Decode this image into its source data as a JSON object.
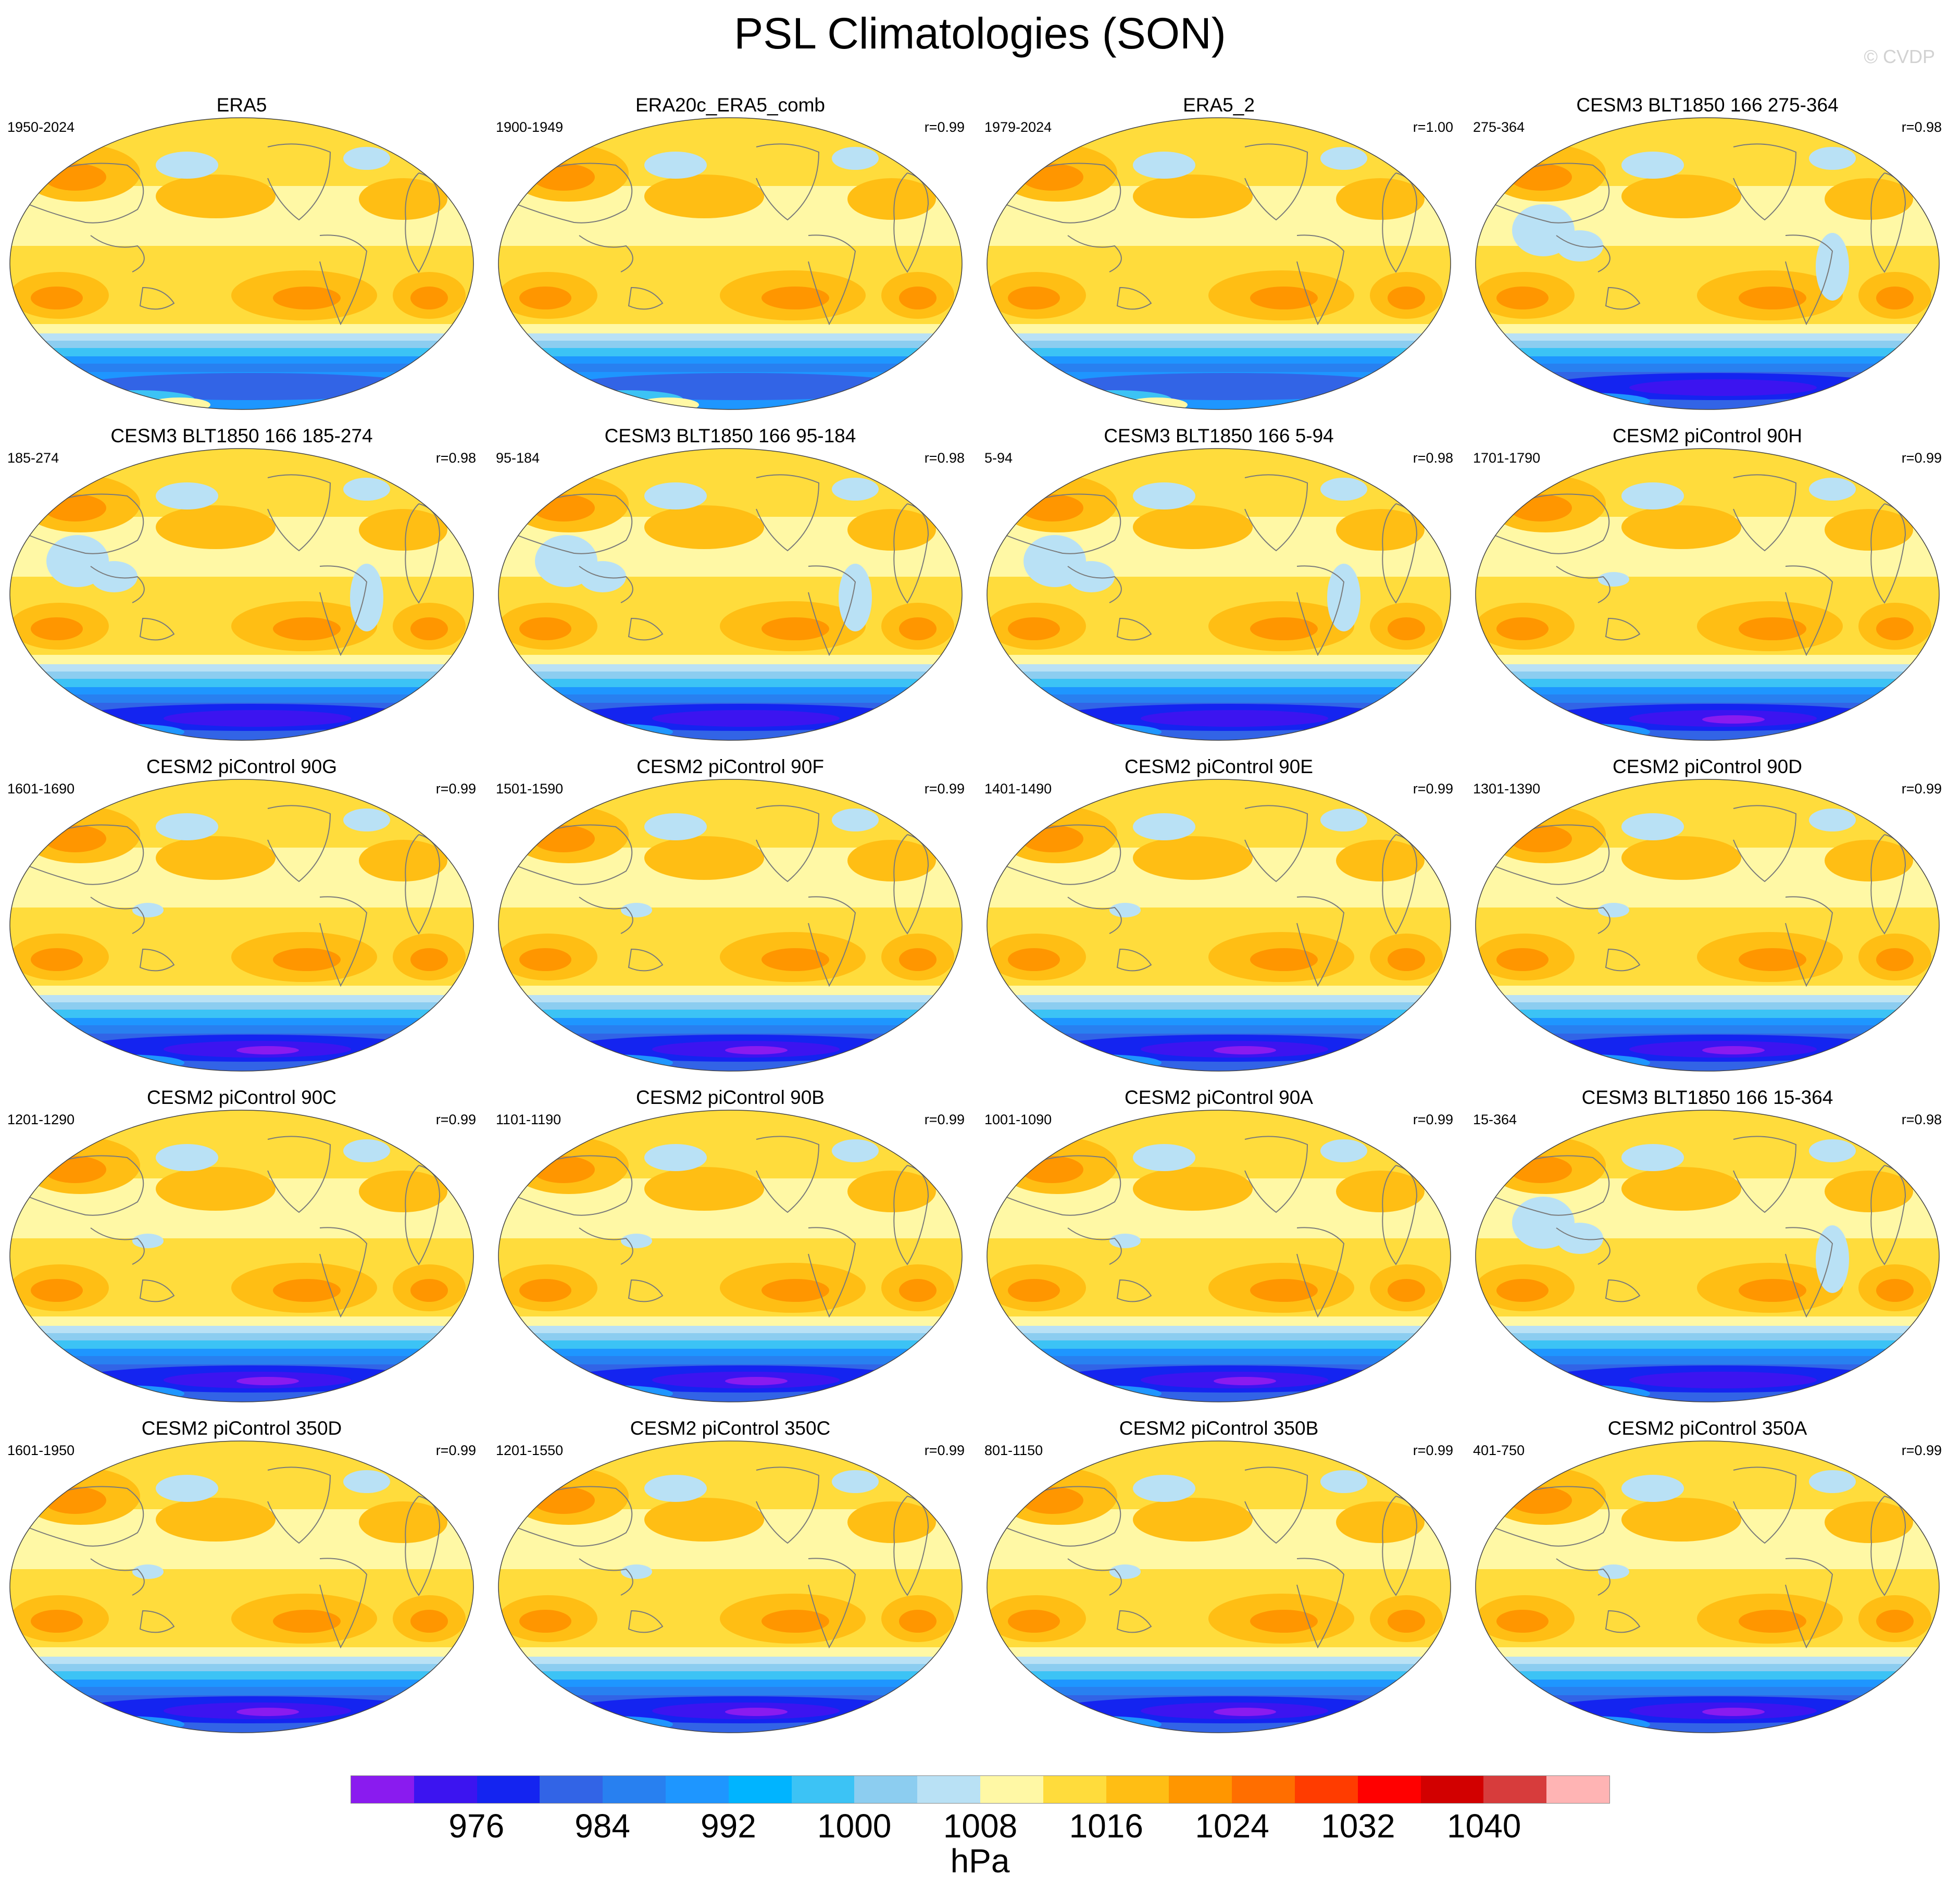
{
  "title": "PSL Climatologies (SON)",
  "watermark": "© CVDP",
  "panels": [
    {
      "title": "ERA5",
      "years": "1950-2024",
      "r": "",
      "variant": "obs"
    },
    {
      "title": "ERA20c_ERA5_comb",
      "years": "1900-1949",
      "r": "r=0.99",
      "variant": "obs"
    },
    {
      "title": "ERA5_2",
      "years": "1979-2024",
      "r": "r=1.00",
      "variant": "obs"
    },
    {
      "title": "CESM3 BLT1850 166 275-364",
      "years": "275-364",
      "r": "r=0.98",
      "variant": "cesm3"
    },
    {
      "title": "CESM3 BLT1850 166 185-274",
      "years": "185-274",
      "r": "r=0.98",
      "variant": "cesm3"
    },
    {
      "title": "CESM3 BLT1850 166 95-184",
      "years": "95-184",
      "r": "r=0.98",
      "variant": "cesm3"
    },
    {
      "title": "CESM3 BLT1850 166 5-94",
      "years": "5-94",
      "r": "r=0.98",
      "variant": "cesm3"
    },
    {
      "title": "CESM2 piControl 90H",
      "years": "1701-1790",
      "r": "r=0.99",
      "variant": "cesm2"
    },
    {
      "title": "CESM2 piControl 90G",
      "years": "1601-1690",
      "r": "r=0.99",
      "variant": "cesm2"
    },
    {
      "title": "CESM2 piControl 90F",
      "years": "1501-1590",
      "r": "r=0.99",
      "variant": "cesm2"
    },
    {
      "title": "CESM2 piControl 90E",
      "years": "1401-1490",
      "r": "r=0.99",
      "variant": "cesm2"
    },
    {
      "title": "CESM2 piControl 90D",
      "years": "1301-1390",
      "r": "r=0.99",
      "variant": "cesm2"
    },
    {
      "title": "CESM2 piControl 90C",
      "years": "1201-1290",
      "r": "r=0.99",
      "variant": "cesm2"
    },
    {
      "title": "CESM2 piControl 90B",
      "years": "1101-1190",
      "r": "r=0.99",
      "variant": "cesm2"
    },
    {
      "title": "CESM2 piControl 90A",
      "years": "1001-1090",
      "r": "r=0.99",
      "variant": "cesm2"
    },
    {
      "title": "CESM3 BLT1850 166 15-364",
      "years": "15-364",
      "r": "r=0.98",
      "variant": "cesm3"
    },
    {
      "title": "CESM2 piControl 350D",
      "years": "1601-1950",
      "r": "r=0.99",
      "variant": "cesm2"
    },
    {
      "title": "CESM2 piControl 350C",
      "years": "1201-1550",
      "r": "r=0.99",
      "variant": "cesm2"
    },
    {
      "title": "CESM2 piControl 350B",
      "years": "801-1150",
      "r": "r=0.99",
      "variant": "cesm2"
    },
    {
      "title": "CESM2 piControl 350A",
      "years": "401-750",
      "r": "r=0.99",
      "variant": "cesm2"
    }
  ],
  "colorbar": {
    "colors": [
      "#8a1bef",
      "#3c14f0",
      "#1424f0",
      "#3264e6",
      "#2880f0",
      "#1e96ff",
      "#00b4ff",
      "#3cc3f5",
      "#8ccdf0",
      "#b9e1f5",
      "#fff8a5",
      "#ffdc3c",
      "#ffbe14",
      "#ff9600",
      "#ff6e00",
      "#ff3c00",
      "#ff0000",
      "#d20000",
      "#d73c3c",
      "#ffb4b4"
    ],
    "labels": [
      "976",
      "984",
      "992",
      "1000",
      "1008",
      "1016",
      "1024",
      "1032",
      "1040"
    ],
    "units": "hPa"
  }
}
